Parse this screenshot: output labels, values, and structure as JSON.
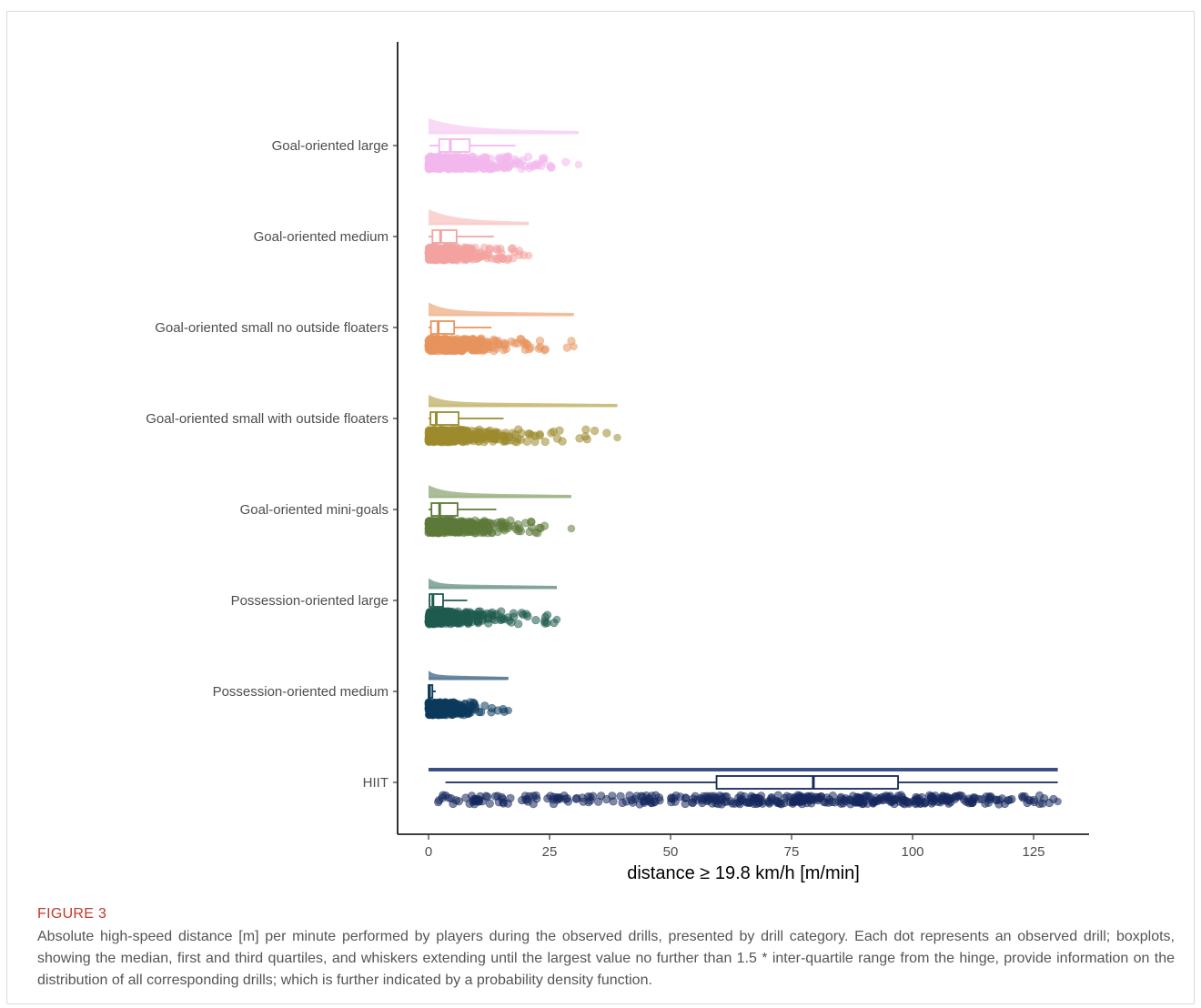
{
  "chart_data": {
    "type": "raincloud",
    "xlabel": "distance ≥ 19.8 km/h [m/min]",
    "xlim": [
      -6,
      136
    ],
    "xticks": [
      0,
      25,
      50,
      75,
      100,
      125
    ],
    "grid": false,
    "categories": [
      "Goal-oriented large",
      "Goal-oriented medium",
      "Goal-oriented small no outside floaters",
      "Goal-oriented small with outside floaters",
      "Goal-oriented mini-goals",
      "Possession-oriented large",
      "Possession-oriented medium",
      "HIIT"
    ],
    "series": [
      {
        "name": "Goal-oriented large",
        "color": "#f2b8ec",
        "fill": "#f7d6f3",
        "box": {
          "whisker_low": 0.2,
          "q1": 2.2,
          "median": 4.5,
          "q3": 8.5,
          "whisker_high": 18.0
        },
        "max": 31.0,
        "spread": 6.5,
        "density_peak": 1.5,
        "decay": 0.15
      },
      {
        "name": "Goal-oriented medium",
        "color": "#f4a3a1",
        "fill": "#f9cfcd",
        "box": {
          "whisker_low": 0.0,
          "q1": 0.8,
          "median": 2.5,
          "q3": 5.8,
          "whisker_high": 13.5
        },
        "max": 20.7,
        "spread": 4.5,
        "density_peak": 1.5,
        "decay": 0.2
      },
      {
        "name": "Goal-oriented small no outside floaters",
        "color": "#e8935e",
        "fill": "#f1bc98",
        "box": {
          "whisker_low": 0.0,
          "q1": 0.5,
          "median": 2.0,
          "q3": 5.3,
          "whisker_high": 13.0
        },
        "max": 30.0,
        "spread": 5.5,
        "density_peak": 1.2,
        "decay": 0.3
      },
      {
        "name": "Goal-oriented small with outside floaters",
        "color": "#9c8a2e",
        "fill": "#c9bd7e",
        "box": {
          "whisker_low": 0.0,
          "q1": 0.4,
          "median": 1.6,
          "q3": 6.2,
          "whisker_high": 15.5
        },
        "max": 39.0,
        "spread": 7.0,
        "density_peak": 1.0,
        "decay": 0.35
      },
      {
        "name": "Goal-oriented mini-goals",
        "color": "#5d7a3a",
        "fill": "#a3b78d",
        "box": {
          "whisker_low": 0.0,
          "q1": 0.6,
          "median": 2.3,
          "q3": 6.0,
          "whisker_high": 14.0
        },
        "max": 29.5,
        "spread": 5.5,
        "density_peak": 1.1,
        "decay": 0.3
      },
      {
        "name": "Possession-oriented large",
        "color": "#1f5b4f",
        "fill": "#7ea399",
        "box": {
          "whisker_low": 0.0,
          "q1": 0.2,
          "median": 0.9,
          "q3": 3.0,
          "whisker_high": 8.0
        },
        "max": 26.5,
        "spread": 4.0,
        "density_peak": 0.8,
        "decay": 0.6
      },
      {
        "name": "Possession-oriented medium",
        "color": "#0b3a5c",
        "fill": "#5f7f98",
        "box": {
          "whisker_low": 0.0,
          "q1": 0.0,
          "median": 0.2,
          "q3": 0.8,
          "whisker_high": 1.5
        },
        "max": 16.5,
        "spread": 3.0,
        "density_peak": 0.6,
        "decay": 0.9
      },
      {
        "name": "HIIT",
        "color": "#16285e",
        "fill": "#3b4f86",
        "box": {
          "whisker_low": 3.5,
          "q1": 59.5,
          "median": 79.5,
          "q3": 97.0,
          "whisker_high": 130.0
        },
        "max": 130.0,
        "spread": 0,
        "density_peak": 0,
        "decay": 0
      }
    ]
  },
  "caption": {
    "figure_label": "FIGURE 3",
    "text": "Absolute high-speed distance [m] per minute performed by players during the observed drills, presented by drill category. Each dot represents an observed drill; boxplots, showing the median, first and third quartiles, and whiskers extending until the largest value no further than 1.5 * inter-quartile range from the hinge, provide information on the distribution of all corresponding drills; which is further indicated by a probability density function."
  }
}
